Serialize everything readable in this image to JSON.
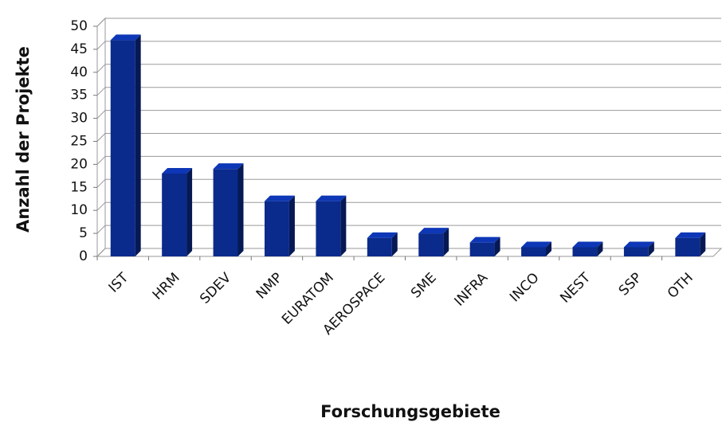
{
  "chart_data": {
    "type": "bar",
    "x_label": "Forschungsgebiete",
    "y_label": "Anzahl der Projekte",
    "categories": [
      "IST",
      "HRM",
      "SDEV",
      "NMP",
      "EURATOM",
      "AEROSPACE",
      "SME",
      "INFRA",
      "INCO",
      "NEST",
      "SSP",
      "OTH"
    ],
    "values": [
      47,
      18,
      19,
      12,
      12,
      4,
      5,
      3,
      2,
      2,
      2,
      4
    ],
    "color": "#0a2a8c",
    "ylim": [
      0,
      50
    ],
    "yticks": [
      0,
      5,
      10,
      15,
      20,
      25,
      30,
      35,
      40,
      45,
      50
    ],
    "grid": true
  }
}
